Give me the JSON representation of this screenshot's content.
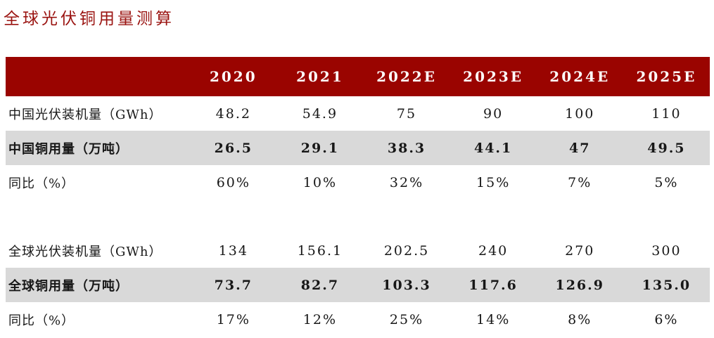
{
  "title": "全球光伏铜用量测算",
  "colors": {
    "accent_red": "#9a0400",
    "title_red": "#9a1310",
    "highlight_row_gray": "#d9d9d9",
    "header_text": "#ffffff",
    "body_text": "#171717"
  },
  "chart_data": {
    "type": "table",
    "title": "全球光伏铜用量测算",
    "columns": [
      "",
      "2020",
      "2021",
      "2022E",
      "2023E",
      "2024E",
      "2025E"
    ],
    "rows": [
      {
        "label": "中国光伏装机量（GWh）",
        "style": "plain",
        "values": [
          "48.2",
          "54.9",
          "75",
          "90",
          "100",
          "110"
        ]
      },
      {
        "label": "中国铜用量（万吨）",
        "style": "highlight",
        "values": [
          "26.5",
          "29.1",
          "38.3",
          "44.1",
          "47",
          "49.5"
        ]
      },
      {
        "label": "同比（%）",
        "style": "plain",
        "values": [
          "60%",
          "10%",
          "32%",
          "15%",
          "7%",
          "5%"
        ]
      },
      {
        "label": "",
        "style": "spacer",
        "values": [
          "",
          "",
          "",
          "",
          "",
          ""
        ]
      },
      {
        "label": "全球光伏装机量（GWh）",
        "style": "plain",
        "values": [
          "134",
          "156.1",
          "202.5",
          "240",
          "270",
          "300"
        ]
      },
      {
        "label": "全球铜用量（万吨）",
        "style": "highlight",
        "values": [
          "73.7",
          "82.7",
          "103.3",
          "117.6",
          "126.9",
          "135.0"
        ]
      },
      {
        "label": "同比（%）",
        "style": "plain",
        "values": [
          "17%",
          "12%",
          "25%",
          "14%",
          "8%",
          "6%"
        ]
      }
    ]
  }
}
